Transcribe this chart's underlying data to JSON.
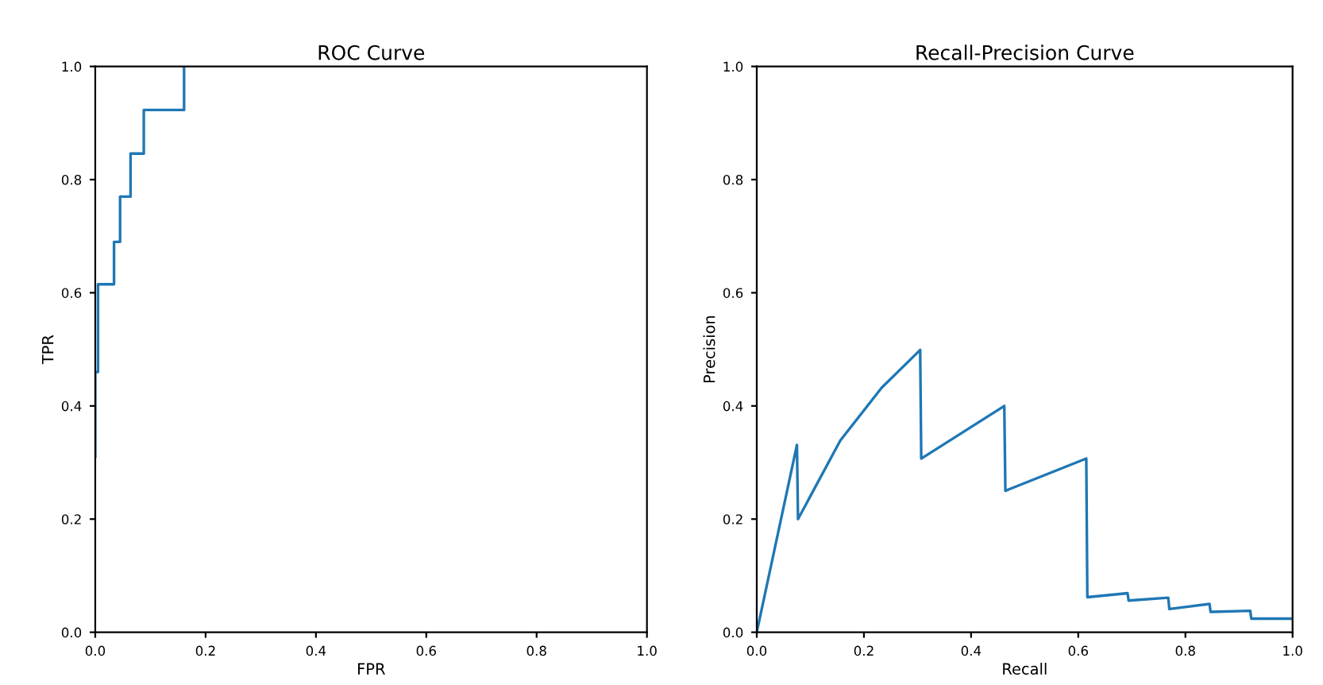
{
  "chart_data": [
    {
      "type": "line",
      "title": "ROC Curve",
      "xlabel": "FPR",
      "ylabel": "TPR",
      "series": [
        {
          "color": "#1f77b4",
          "x": [
            0,
            0,
            0.005,
            0.005,
            0.034,
            0.034,
            0.045,
            0.045,
            0.064,
            0.064,
            0.088,
            0.088,
            0.161,
            0.161
          ],
          "values": [
            0.31,
            0.46,
            0.46,
            0.615,
            0.615,
            0.69,
            0.69,
            0.77,
            0.77,
            0.846,
            0.846,
            0.923,
            0.923,
            1.0
          ]
        }
      ],
      "xlim": [
        0,
        1
      ],
      "ylim": [
        0,
        1
      ],
      "xticks": [
        {
          "value": 0,
          "label": "0.0"
        },
        {
          "value": 0.2,
          "label": "0.2"
        },
        {
          "value": 0.4,
          "label": "0.4"
        },
        {
          "value": 0.6,
          "label": "0.6"
        },
        {
          "value": 0.8,
          "label": "0.8"
        },
        {
          "value": 1,
          "label": "1.0"
        }
      ],
      "yticks": [
        {
          "value": 0,
          "label": "0.0"
        },
        {
          "value": 0.2,
          "label": "0.2"
        },
        {
          "value": 0.4,
          "label": "0.4"
        },
        {
          "value": 0.6,
          "label": "0.6"
        },
        {
          "value": 0.8,
          "label": "0.8"
        },
        {
          "value": 1,
          "label": "1.0"
        }
      ]
    },
    {
      "type": "line",
      "title": "Recall-Precision Curve",
      "xlabel": "Recall",
      "ylabel": "Precision",
      "series": [
        {
          "color": "#1f77b4",
          "x": [
            0,
            0.075,
            0.077,
            0.156,
            0.233,
            0.305,
            0.307,
            0.462,
            0.464,
            0.615,
            0.617,
            0.692,
            0.694,
            0.768,
            0.77,
            0.845,
            0.847,
            0.921,
            0.923,
            1.0
          ],
          "values": [
            0,
            0.331,
            0.2,
            0.339,
            0.432,
            0.499,
            0.307,
            0.4,
            0.25,
            0.307,
            0.062,
            0.069,
            0.056,
            0.061,
            0.041,
            0.05,
            0.036,
            0.038,
            0.024,
            0.024
          ]
        }
      ],
      "xlim": [
        0,
        1
      ],
      "ylim": [
        0,
        1
      ],
      "xticks": [
        {
          "value": 0,
          "label": "0.0"
        },
        {
          "value": 0.2,
          "label": "0.2"
        },
        {
          "value": 0.4,
          "label": "0.4"
        },
        {
          "value": 0.6,
          "label": "0.6"
        },
        {
          "value": 0.8,
          "label": "0.8"
        },
        {
          "value": 1,
          "label": "1.0"
        }
      ],
      "yticks": [
        {
          "value": 0,
          "label": "0.0"
        },
        {
          "value": 0.2,
          "label": "0.2"
        },
        {
          "value": 0.4,
          "label": "0.4"
        },
        {
          "value": 0.6,
          "label": "0.6"
        },
        {
          "value": 0.8,
          "label": "0.8"
        },
        {
          "value": 1,
          "label": "1.0"
        }
      ]
    }
  ]
}
